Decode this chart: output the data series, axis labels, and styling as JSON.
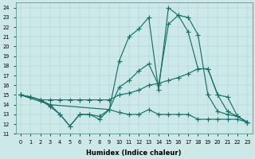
{
  "xlabel": "Humidex (Indice chaleur)",
  "xlim": [
    -0.5,
    23.5
  ],
  "ylim": [
    11,
    24.5
  ],
  "yticks": [
    11,
    12,
    13,
    14,
    15,
    16,
    17,
    18,
    19,
    20,
    21,
    22,
    23,
    24
  ],
  "xticks": [
    0,
    1,
    2,
    3,
    4,
    5,
    6,
    7,
    8,
    9,
    10,
    11,
    12,
    13,
    14,
    15,
    16,
    17,
    18,
    19,
    20,
    21,
    22,
    23
  ],
  "bg_color": "#cce8e8",
  "line_color": "#1a7068",
  "line1_x": [
    0,
    1,
    2,
    3,
    4,
    5,
    6,
    7,
    8,
    9,
    10,
    11,
    12,
    13,
    14,
    15,
    16,
    17,
    18,
    19,
    20,
    21,
    22,
    23
  ],
  "line1_y": [
    15.0,
    14.8,
    14.5,
    14.5,
    14.5,
    14.5,
    14.5,
    14.5,
    14.5,
    14.5,
    15.0,
    15.2,
    15.5,
    16.0,
    16.2,
    16.5,
    16.8,
    17.2,
    17.7,
    17.7,
    15.0,
    14.8,
    12.8,
    12.2
  ],
  "line2_x": [
    0,
    1,
    2,
    3,
    4,
    5,
    6,
    7,
    8,
    9,
    10,
    11,
    12,
    13,
    14,
    15,
    16,
    17,
    18,
    19,
    20,
    21,
    22,
    23
  ],
  "line2_y": [
    15.0,
    14.8,
    14.5,
    14.0,
    13.0,
    11.8,
    13.0,
    13.0,
    12.8,
    13.5,
    18.5,
    21.0,
    21.8,
    23.0,
    15.5,
    24.0,
    23.2,
    23.0,
    21.2,
    15.0,
    13.3,
    13.0,
    12.8,
    12.2
  ],
  "line3_x": [
    0,
    3,
    9,
    10,
    11,
    12,
    13,
    14,
    15,
    16,
    17,
    18,
    19,
    20,
    21,
    22,
    23
  ],
  "line3_y": [
    15.0,
    14.0,
    13.5,
    15.8,
    16.5,
    17.5,
    18.2,
    16.0,
    22.3,
    23.2,
    21.5,
    17.7,
    17.7,
    15.0,
    13.3,
    12.8,
    12.2
  ],
  "line4_x": [
    0,
    1,
    2,
    3,
    4,
    5,
    6,
    7,
    8,
    9,
    10,
    11,
    12,
    13,
    14,
    15,
    16,
    17,
    18,
    19,
    20,
    21,
    22,
    23
  ],
  "line4_y": [
    15.0,
    14.8,
    14.5,
    13.8,
    13.0,
    11.8,
    13.0,
    13.0,
    12.5,
    13.5,
    13.2,
    13.0,
    13.0,
    13.5,
    13.0,
    13.0,
    13.0,
    13.0,
    12.5,
    12.5,
    12.5,
    12.5,
    12.5,
    12.2
  ]
}
